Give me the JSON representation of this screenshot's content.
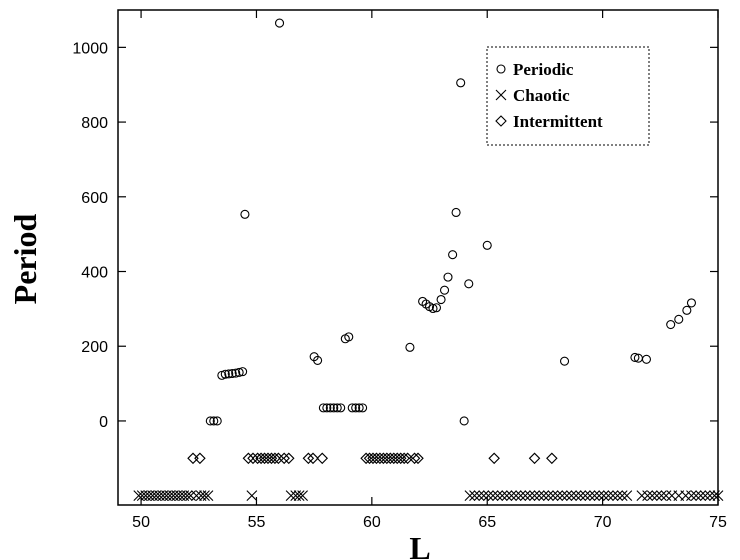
{
  "chart_data": {
    "type": "scatter",
    "title": "",
    "xlabel": "L",
    "ylabel": "Period",
    "xlim": [
      49,
      75
    ],
    "ylim": [
      -225,
      1100
    ],
    "x_ticks": [
      50,
      55,
      60,
      65,
      70,
      75
    ],
    "x_tick_labels": [
      "50",
      "55",
      "60",
      "65",
      "70",
      "75"
    ],
    "y_ticks": [
      0,
      200,
      400,
      600,
      800,
      1000
    ],
    "y_tick_labels": [
      "0",
      "200",
      "400",
      "600",
      "800",
      "1000"
    ],
    "grid": false,
    "legend": {
      "placement": "top-right",
      "entries": [
        {
          "label": "Periodic",
          "marker": "circle"
        },
        {
          "label": "Chaotic",
          "marker": "cross"
        },
        {
          "label": "Intermittent",
          "marker": "diamond"
        }
      ]
    },
    "series": [
      {
        "name": "Periodic",
        "marker": "circle",
        "points": [
          [
            53.0,
            0
          ],
          [
            53.15,
            0
          ],
          [
            53.3,
            0
          ],
          [
            53.5,
            122
          ],
          [
            53.65,
            125
          ],
          [
            53.8,
            126
          ],
          [
            53.95,
            127
          ],
          [
            54.1,
            128
          ],
          [
            54.25,
            130
          ],
          [
            54.4,
            132
          ],
          [
            54.5,
            553
          ],
          [
            56.0,
            1065
          ],
          [
            57.5,
            172
          ],
          [
            57.65,
            162
          ],
          [
            57.9,
            35
          ],
          [
            58.05,
            35
          ],
          [
            58.2,
            35
          ],
          [
            58.35,
            35
          ],
          [
            58.5,
            35
          ],
          [
            58.65,
            35
          ],
          [
            58.85,
            220
          ],
          [
            59.0,
            225
          ],
          [
            59.15,
            35
          ],
          [
            59.3,
            35
          ],
          [
            59.45,
            35
          ],
          [
            59.6,
            35
          ],
          [
            61.65,
            197
          ],
          [
            62.2,
            320
          ],
          [
            62.35,
            313
          ],
          [
            62.5,
            306
          ],
          [
            62.65,
            301
          ],
          [
            62.8,
            303
          ],
          [
            63.0,
            325
          ],
          [
            63.15,
            350
          ],
          [
            63.3,
            385
          ],
          [
            63.5,
            445
          ],
          [
            63.65,
            558
          ],
          [
            63.85,
            905
          ],
          [
            64.0,
            0
          ],
          [
            64.2,
            367
          ],
          [
            65.0,
            470
          ],
          [
            68.35,
            160
          ],
          [
            71.4,
            170
          ],
          [
            71.55,
            168
          ],
          [
            71.9,
            165
          ],
          [
            72.95,
            258
          ],
          [
            73.3,
            272
          ],
          [
            73.65,
            296
          ],
          [
            73.85,
            316
          ]
        ]
      },
      {
        "name": "Chaotic",
        "marker": "cross",
        "x": [
          49.9,
          50.05,
          50.2,
          50.35,
          50.5,
          50.65,
          50.8,
          50.95,
          51.1,
          51.25,
          51.4,
          51.55,
          51.7,
          51.85,
          52.0,
          52.15,
          52.4,
          52.6,
          52.75,
          52.9,
          54.8,
          56.5,
          56.7,
          56.85,
          57.0,
          64.25,
          64.45,
          64.65,
          64.85,
          65.05,
          65.25,
          65.45,
          65.65,
          65.85,
          66.05,
          66.25,
          66.45,
          66.65,
          66.85,
          67.05,
          67.25,
          67.45,
          67.65,
          67.85,
          68.05,
          68.25,
          68.45,
          68.65,
          68.85,
          69.05,
          69.25,
          69.45,
          69.65,
          69.85,
          70.05,
          70.25,
          70.45,
          70.65,
          70.85,
          71.05,
          71.7,
          71.95,
          72.15,
          72.35,
          72.55,
          72.75,
          73.0,
          73.3,
          73.6,
          73.85,
          74.05,
          74.25,
          74.45,
          74.65,
          74.85,
          75.0
        ],
        "y": -200
      },
      {
        "name": "Intermittent",
        "marker": "diamond",
        "x": [
          52.25,
          52.55,
          54.65,
          54.85,
          55.05,
          55.2,
          55.35,
          55.5,
          55.65,
          55.8,
          55.95,
          56.2,
          56.4,
          57.25,
          57.45,
          57.85,
          59.75,
          59.9,
          60.05,
          60.2,
          60.35,
          60.5,
          60.65,
          60.8,
          60.95,
          61.1,
          61.25,
          61.4,
          61.55,
          61.85,
          62.0,
          65.3,
          67.05,
          67.8
        ],
        "y": -100
      }
    ]
  }
}
